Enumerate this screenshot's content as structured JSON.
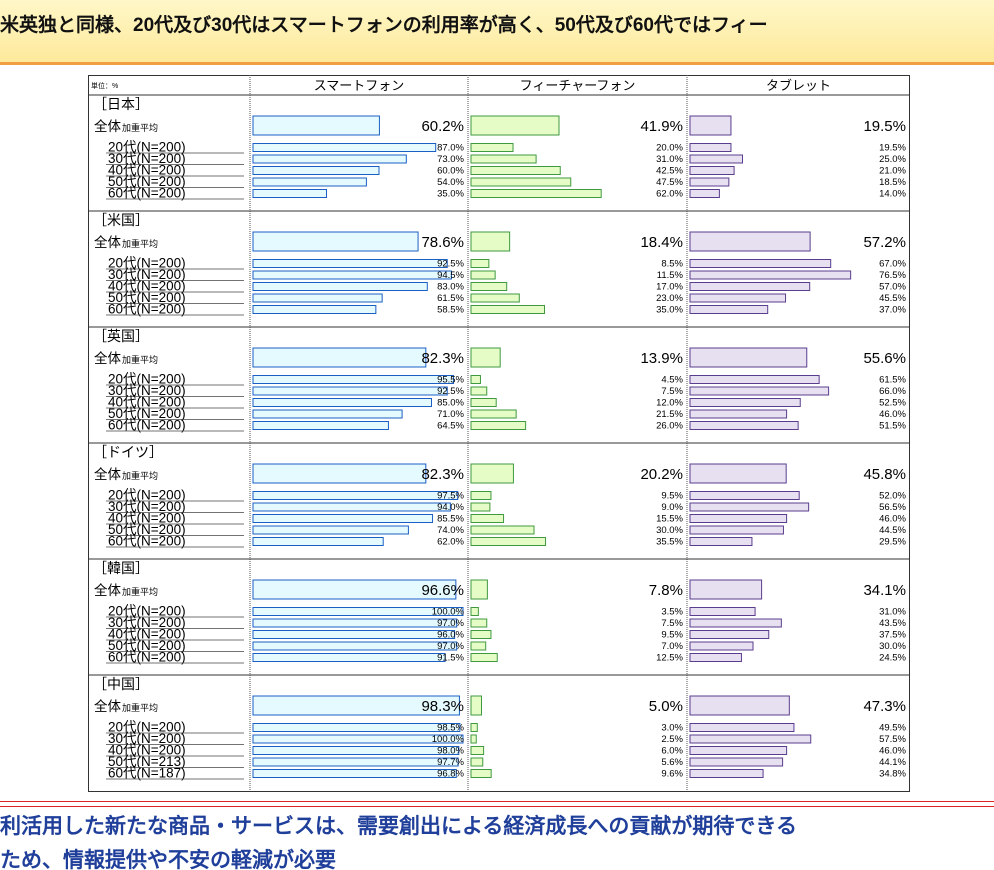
{
  "header": {
    "text": "米英独と同様、20代及び30代はスマートフォンの利用率が高く、50代及び60代ではフィー"
  },
  "footer": {
    "line1": "利活用した新たな商品・サービスは、需要創出による経済成長への貢献が期待できる",
    "line2": "ため、情報提供や不安の軽減が必要"
  },
  "chart_data": {
    "type": "bar",
    "orientation": "horizontal",
    "unit": "単位：%",
    "columns": [
      "スマートフォン",
      "フィーチャーフォン",
      "タブレット"
    ],
    "colors": {
      "スマートフォン": "#e4faff",
      "フィーチャーフォン": "#e6fcc6",
      "タブレット": "#e6e0f0",
      "スマートフォン_border": "#1b5fc4",
      "フィーチャーフォン_border": "#3f9a3f",
      "タブレット_border": "#5a3d8e"
    },
    "groups": [
      {
        "name": "［日本］",
        "rows": [
          {
            "label": "全体",
            "sublabel": "加重平均",
            "values": [
              "60.2%",
              "41.9%",
              "19.5%"
            ]
          },
          {
            "label": "20代(N=200)",
            "values": [
              "87.0%",
              "20.0%",
              "19.5%"
            ]
          },
          {
            "label": "30代(N=200)",
            "values": [
              "73.0%",
              "31.0%",
              "25.0%"
            ]
          },
          {
            "label": "40代(N=200)",
            "values": [
              "60.0%",
              "42.5%",
              "21.0%"
            ]
          },
          {
            "label": "50代(N=200)",
            "values": [
              "54.0%",
              "47.5%",
              "18.5%"
            ]
          },
          {
            "label": "60代(N=200)",
            "values": [
              "35.0%",
              "62.0%",
              "14.0%"
            ]
          }
        ]
      },
      {
        "name": "［米国］",
        "rows": [
          {
            "label": "全体",
            "sublabel": "加重平均",
            "values": [
              "78.6%",
              "18.4%",
              "57.2%"
            ]
          },
          {
            "label": "20代(N=200)",
            "values": [
              "92.5%",
              "8.5%",
              "67.0%"
            ]
          },
          {
            "label": "30代(N=200)",
            "values": [
              "94.5%",
              "11.5%",
              "76.5%"
            ]
          },
          {
            "label": "40代(N=200)",
            "values": [
              "83.0%",
              "17.0%",
              "57.0%"
            ]
          },
          {
            "label": "50代(N=200)",
            "values": [
              "61.5%",
              "23.0%",
              "45.5%"
            ]
          },
          {
            "label": "60代(N=200)",
            "values": [
              "58.5%",
              "35.0%",
              "37.0%"
            ]
          }
        ]
      },
      {
        "name": "［英国］",
        "rows": [
          {
            "label": "全体",
            "sublabel": "加重平均",
            "values": [
              "82.3%",
              "13.9%",
              "55.6%"
            ]
          },
          {
            "label": "20代(N=200)",
            "values": [
              "95.5%",
              "4.5%",
              "61.5%"
            ]
          },
          {
            "label": "30代(N=200)",
            "values": [
              "92.5%",
              "7.5%",
              "66.0%"
            ]
          },
          {
            "label": "40代(N=200)",
            "values": [
              "85.0%",
              "12.0%",
              "52.5%"
            ]
          },
          {
            "label": "50代(N=200)",
            "values": [
              "71.0%",
              "21.5%",
              "46.0%"
            ]
          },
          {
            "label": "60代(N=200)",
            "values": [
              "64.5%",
              "26.0%",
              "51.5%"
            ]
          }
        ]
      },
      {
        "name": "［ドイツ］",
        "rows": [
          {
            "label": "全体",
            "sublabel": "加重平均",
            "values": [
              "82.3%",
              "20.2%",
              "45.8%"
            ]
          },
          {
            "label": "20代(N=200)",
            "values": [
              "97.5%",
              "9.5%",
              "52.0%"
            ]
          },
          {
            "label": "30代(N=200)",
            "values": [
              "94.0%",
              "9.0%",
              "56.5%"
            ]
          },
          {
            "label": "40代(N=200)",
            "values": [
              "85.5%",
              "15.5%",
              "46.0%"
            ]
          },
          {
            "label": "50代(N=200)",
            "values": [
              "74.0%",
              "30.0%",
              "44.5%"
            ]
          },
          {
            "label": "60代(N=200)",
            "values": [
              "62.0%",
              "35.5%",
              "29.5%"
            ]
          }
        ]
      },
      {
        "name": "［韓国］",
        "rows": [
          {
            "label": "全体",
            "sublabel": "加重平均",
            "values": [
              "96.6%",
              "7.8%",
              "34.1%"
            ]
          },
          {
            "label": "20代(N=200)",
            "values": [
              "100.0%",
              "3.5%",
              "31.0%"
            ]
          },
          {
            "label": "30代(N=200)",
            "values": [
              "97.0%",
              "7.5%",
              "43.5%"
            ]
          },
          {
            "label": "40代(N=200)",
            "values": [
              "96.0%",
              "9.5%",
              "37.5%"
            ]
          },
          {
            "label": "50代(N=200)",
            "values": [
              "97.0%",
              "7.0%",
              "30.0%"
            ]
          },
          {
            "label": "60代(N=200)",
            "values": [
              "91.5%",
              "12.5%",
              "24.5%"
            ]
          }
        ]
      },
      {
        "name": "［中国］",
        "rows": [
          {
            "label": "全体",
            "sublabel": "加重平均",
            "values": [
              "98.3%",
              "5.0%",
              "47.3%"
            ]
          },
          {
            "label": "20代(N=200)",
            "values": [
              "98.5%",
              "3.0%",
              "49.5%"
            ]
          },
          {
            "label": "30代(N=200)",
            "values": [
              "100.0%",
              "2.5%",
              "57.5%"
            ]
          },
          {
            "label": "40代(N=200)",
            "values": [
              "98.0%",
              "6.0%",
              "46.0%"
            ]
          },
          {
            "label": "50代(N=213)",
            "values": [
              "97.7%",
              "5.6%",
              "44.1%"
            ]
          },
          {
            "label": "60代(N=187)",
            "values": [
              "96.8%",
              "9.6%",
              "34.8%"
            ]
          }
        ]
      }
    ]
  }
}
